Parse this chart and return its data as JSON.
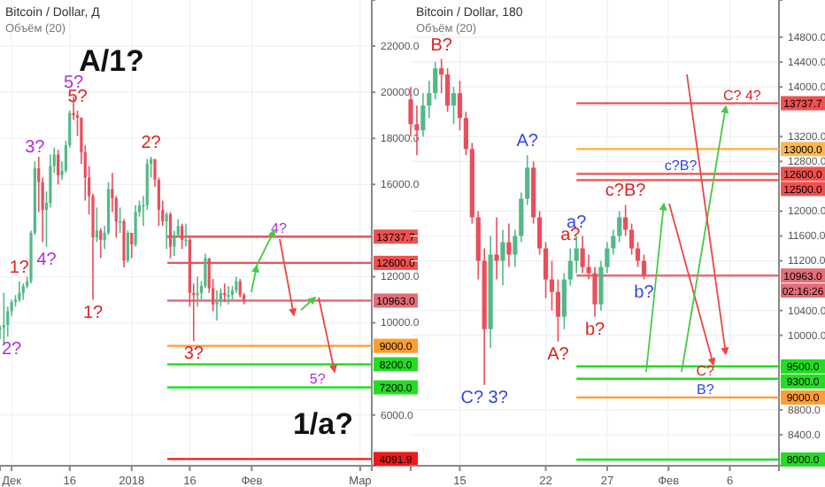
{
  "chart_data": [
    {
      "type": "candlestick",
      "title": "Bitcoin / Dollar, Д",
      "subtitle": "Объём (20)",
      "x": [
        "2017-11-28",
        "2017-11-29",
        "2017-11-30",
        "2017-12-01",
        "2017-12-02",
        "2017-12-03",
        "2017-12-04",
        "2017-12-05",
        "2017-12-06",
        "2017-12-07",
        "2017-12-08",
        "2017-12-09",
        "2017-12-10",
        "2017-12-11",
        "2017-12-12",
        "2017-12-13",
        "2017-12-14",
        "2017-12-15",
        "2017-12-16",
        "2017-12-17",
        "2017-12-18",
        "2017-12-19",
        "2017-12-20",
        "2017-12-21",
        "2017-12-22",
        "2017-12-23",
        "2017-12-24",
        "2017-12-25",
        "2017-12-26",
        "2017-12-27",
        "2017-12-28",
        "2017-12-29",
        "2017-12-30",
        "2017-12-31",
        "2018-01-01",
        "2018-01-02",
        "2018-01-03",
        "2018-01-04",
        "2018-01-05",
        "2018-01-06",
        "2018-01-07",
        "2018-01-08",
        "2018-01-09",
        "2018-01-10",
        "2018-01-11",
        "2018-01-12",
        "2018-01-13",
        "2018-01-14",
        "2018-01-15",
        "2018-01-16",
        "2018-01-17",
        "2018-01-18",
        "2018-01-19",
        "2018-01-20",
        "2018-01-21",
        "2018-01-22",
        "2018-01-23",
        "2018-01-24",
        "2018-01-25",
        "2018-01-26",
        "2018-01-27",
        "2018-01-28",
        "2018-01-29",
        "2018-01-30"
      ],
      "ohlc": [
        [
          9700,
          9900,
          9300,
          9800
        ],
        [
          9800,
          11300,
          9000,
          9900
        ],
        [
          9900,
          10700,
          9400,
          10500
        ],
        [
          10500,
          11000,
          10300,
          10900
        ],
        [
          10900,
          11200,
          10700,
          11000
        ],
        [
          11000,
          11800,
          10900,
          11300
        ],
        [
          11300,
          11700,
          11000,
          11600
        ],
        [
          11600,
          12000,
          11500,
          11800
        ],
        [
          11800,
          14000,
          11700,
          13900
        ],
        [
          13900,
          17000,
          13800,
          16700
        ],
        [
          16700,
          17200,
          14800,
          16100
        ],
        [
          16100,
          16300,
          13500,
          14900
        ],
        [
          14900,
          15700,
          13300,
          15200
        ],
        [
          15200,
          17300,
          15000,
          16800
        ],
        [
          16800,
          17600,
          16500,
          17300
        ],
        [
          17300,
          17500,
          16000,
          16400
        ],
        [
          16400,
          17000,
          16200,
          16600
        ],
        [
          16600,
          17900,
          16500,
          17700
        ],
        [
          17700,
          19200,
          17600,
          19100
        ],
        [
          19100,
          19800,
          18800,
          19000
        ],
        [
          19000,
          19200,
          18100,
          18900
        ],
        [
          18900,
          18900,
          16900,
          17400
        ],
        [
          17400,
          17700,
          15300,
          16300
        ],
        [
          16300,
          16800,
          14700,
          15500
        ],
        [
          15500,
          15600,
          11000,
          13700
        ],
        [
          13700,
          15000,
          13500,
          14000
        ],
        [
          14000,
          14100,
          12800,
          13600
        ],
        [
          13600,
          14200,
          13200,
          13900
        ],
        [
          13900,
          16100,
          13800,
          15800
        ],
        [
          15800,
          16500,
          14800,
          15400
        ],
        [
          15400,
          15500,
          13700,
          14400
        ],
        [
          14400,
          15000,
          13900,
          14400
        ],
        [
          14400,
          14500,
          12400,
          12700
        ],
        [
          12700,
          14000,
          12600,
          13900
        ],
        [
          13900,
          13900,
          12800,
          13400
        ],
        [
          13400,
          15100,
          13300,
          14800
        ],
        [
          14800,
          15300,
          14600,
          15100
        ],
        [
          15100,
          15500,
          14200,
          15100
        ],
        [
          15100,
          17100,
          14900,
          16900
        ],
        [
          16900,
          17200,
          16300,
          17100
        ],
        [
          17100,
          17100,
          15900,
          16200
        ],
        [
          16200,
          16300,
          14200,
          14900
        ],
        [
          14900,
          15300,
          14200,
          14400
        ],
        [
          14400,
          14800,
          13200,
          14700
        ],
        [
          14700,
          14800,
          12800,
          13300
        ],
        [
          13300,
          14000,
          12900,
          13800
        ],
        [
          13800,
          14500,
          13700,
          14200
        ],
        [
          14200,
          14300,
          13200,
          13600
        ],
        [
          13600,
          14300,
          13300,
          13600
        ],
        [
          13600,
          13700,
          10700,
          11300
        ],
        [
          11300,
          11700,
          9200,
          11200
        ],
        [
          11200,
          12000,
          10700,
          11300
        ],
        [
          11300,
          11800,
          11000,
          11600
        ],
        [
          11600,
          13000,
          11500,
          12800
        ],
        [
          12800,
          12800,
          11300,
          11500
        ],
        [
          11500,
          11900,
          10500,
          10800
        ],
        [
          10800,
          11400,
          10100,
          10900
        ],
        [
          10900,
          11500,
          10700,
          11300
        ],
        [
          11300,
          11700,
          10900,
          11200
        ],
        [
          11200,
          11600,
          10800,
          11200
        ],
        [
          11200,
          11600,
          11000,
          11400
        ],
        [
          11400,
          12000,
          11300,
          11800
        ],
        [
          11800,
          11900,
          11100,
          11200
        ],
        [
          11200,
          11300,
          10800,
          10963
        ]
      ],
      "xlim": [
        "2017-11-28",
        "2018-03-04"
      ],
      "xticks": [
        {
          "value": "2017-12-01",
          "label": "Дек"
        },
        {
          "value": "2017-12-16",
          "label": "16"
        },
        {
          "value": "2018-01-01",
          "label": "2018"
        },
        {
          "value": "2018-01-16",
          "label": "16"
        },
        {
          "value": "2018-02-01",
          "label": "Фев"
        },
        {
          "value": "2018-03-01",
          "label": "Мар"
        }
      ],
      "ylim": [
        3800,
        24000
      ],
      "yticks": [
        {
          "value": 6000,
          "label": "6000.0"
        },
        {
          "value": 10000,
          "label": "10000.0"
        },
        {
          "value": 12000,
          "label": "12000.0"
        },
        {
          "value": 16000,
          "label": "16000.0"
        },
        {
          "value": 18000,
          "label": "18000.0"
        },
        {
          "value": 20000,
          "label": "20000.0"
        },
        {
          "value": 22000,
          "label": "22000.0"
        }
      ],
      "grid": true,
      "ref_lines": [
        {
          "axis": "y",
          "value": 13737.7,
          "label": "13737.7",
          "color": "#f05050"
        },
        {
          "axis": "y",
          "value": 12600,
          "label": "12600.0",
          "color": "#f05050"
        },
        {
          "axis": "y",
          "value": 10963,
          "label": "10963.0",
          "color": "#e36d78"
        },
        {
          "axis": "y",
          "value": 9000,
          "label": "9000.0",
          "color": "#ff9d2e"
        },
        {
          "axis": "y",
          "value": 8200,
          "label": "8200.0",
          "color": "#22dd22"
        },
        {
          "axis": "y",
          "value": 7200,
          "label": "7200.0",
          "color": "#22dd22"
        },
        {
          "axis": "y",
          "value": 4091.9,
          "label": "4091.9",
          "color": "#f01818"
        }
      ],
      "annotations": [
        "A/1?",
        {
          "text": "5?",
          "x": "2017-12-17",
          "y": 19800
        },
        {
          "text": "5?",
          "x": "2017-12-18",
          "y": 19200
        },
        {
          "text": "3?",
          "x": "2017-12-07",
          "y": 17000
        },
        {
          "text": "2?",
          "x": "2018-01-06",
          "y": 17200
        },
        {
          "text": "4?",
          "x": "2017-12-10",
          "y": 13300
        },
        {
          "text": "1?",
          "x": "2017-12-03",
          "y": 11800
        },
        {
          "text": "2?",
          "x": "2017-11-30",
          "y": 9400
        },
        {
          "text": "1?",
          "x": "2017-12-22",
          "y": 11000
        },
        {
          "text": "4?",
          "x": "2018-02-08",
          "y": 13737.7
        },
        {
          "text": "3?",
          "x": "2018-01-17",
          "y": 9200
        },
        {
          "text": "5?",
          "x": "2018-02-18",
          "y": 7200
        },
        "1/a?"
      ]
    },
    {
      "type": "candlestick",
      "title": "Bitcoin / Dollar, 180",
      "subtitle": "Объём (20)",
      "x": [
        "2018-01-11T00:00",
        "2018-01-11T12:00",
        "2018-01-12T00:00",
        "2018-01-12T12:00",
        "2018-01-13T00:00",
        "2018-01-13T12:00",
        "2018-01-14T00:00",
        "2018-01-14T12:00",
        "2018-01-15T00:00",
        "2018-01-15T12:00",
        "2018-01-16T00:00",
        "2018-01-16T12:00",
        "2018-01-17T00:00",
        "2018-01-17T12:00",
        "2018-01-18T00:00",
        "2018-01-18T12:00",
        "2018-01-19T00:00",
        "2018-01-19T12:00",
        "2018-01-20T00:00",
        "2018-01-20T12:00",
        "2018-01-21T00:00",
        "2018-01-21T12:00",
        "2018-01-22T00:00",
        "2018-01-22T12:00",
        "2018-01-23T00:00",
        "2018-01-23T12:00",
        "2018-01-24T00:00",
        "2018-01-24T12:00",
        "2018-01-25T00:00",
        "2018-01-25T12:00",
        "2018-01-26T00:00",
        "2018-01-26T12:00",
        "2018-01-27T00:00",
        "2018-01-27T12:00",
        "2018-01-28T00:00",
        "2018-01-28T12:00",
        "2018-01-29T00:00",
        "2018-01-29T12:00",
        "2018-01-30T00:00"
      ],
      "ohlc": [
        [
          13800,
          14000,
          13200,
          13400
        ],
        [
          13400,
          13700,
          12900,
          13300
        ],
        [
          13300,
          13900,
          13200,
          13700
        ],
        [
          13700,
          14100,
          13500,
          13900
        ],
        [
          13900,
          14400,
          13800,
          14300
        ],
        [
          14300,
          14450,
          13900,
          14200
        ],
        [
          14200,
          14300,
          13600,
          13700
        ],
        [
          13700,
          14000,
          13400,
          13900
        ],
        [
          13900,
          14100,
          13300,
          13500
        ],
        [
          13500,
          13600,
          12900,
          13000
        ],
        [
          13000,
          13100,
          11800,
          11900
        ],
        [
          11900,
          12000,
          10900,
          11200
        ],
        [
          11200,
          11400,
          9200,
          10100
        ],
        [
          10100,
          11600,
          9800,
          11300
        ],
        [
          11300,
          11900,
          10900,
          11200
        ],
        [
          11200,
          11700,
          10800,
          11500
        ],
        [
          11500,
          11800,
          11100,
          11300
        ],
        [
          11300,
          11700,
          11100,
          11600
        ],
        [
          11600,
          12300,
          11500,
          12200
        ],
        [
          12200,
          12900,
          12100,
          12700
        ],
        [
          12700,
          12800,
          11800,
          11900
        ],
        [
          11900,
          12000,
          11300,
          11400
        ],
        [
          11400,
          11500,
          10600,
          10900
        ],
        [
          10900,
          11200,
          10400,
          10700
        ],
        [
          10700,
          10900,
          9900,
          10300
        ],
        [
          10300,
          11000,
          10100,
          10900
        ],
        [
          10900,
          11400,
          10800,
          11200
        ],
        [
          11200,
          11600,
          11000,
          11400
        ],
        [
          11400,
          11600,
          11000,
          11100
        ],
        [
          11100,
          11300,
          10900,
          11000
        ],
        [
          11000,
          11100,
          10300,
          10500
        ],
        [
          10500,
          11200,
          10400,
          11100
        ],
        [
          11100,
          11500,
          11000,
          11400
        ],
        [
          11400,
          11700,
          11300,
          11600
        ],
        [
          11600,
          12000,
          11500,
          11900
        ],
        [
          11900,
          12100,
          11600,
          11700
        ],
        [
          11700,
          11800,
          11300,
          11400
        ],
        [
          11400,
          11500,
          11100,
          11200
        ],
        [
          11200,
          11300,
          10900,
          10963
        ]
      ],
      "xlim": [
        "2018-01-11",
        "2018-02-10"
      ],
      "xticks": [
        {
          "value": "2018-01-15",
          "label": "15"
        },
        {
          "value": "2018-01-22",
          "label": "22"
        },
        {
          "value": "2018-01-27",
          "label": "27"
        },
        {
          "value": "2018-02-01",
          "label": "Фев"
        },
        {
          "value": "2018-02-06",
          "label": "6"
        }
      ],
      "ylim": [
        7900,
        15400
      ],
      "yticks": [
        {
          "value": 8400,
          "label": "8400.0"
        },
        {
          "value": 8800,
          "label": "8800.0"
        },
        {
          "value": 10000,
          "label": "10000.0"
        },
        {
          "value": 10400,
          "label": "10400.0"
        },
        {
          "value": 11200,
          "label": "11200.0"
        },
        {
          "value": 11600,
          "label": "11600.0"
        },
        {
          "value": 12000,
          "label": "12000.0"
        },
        {
          "value": 12800,
          "label": "12800.0"
        },
        {
          "value": 13200,
          "label": "13200.0"
        },
        {
          "value": 14000,
          "label": "14000.0"
        },
        {
          "value": 14400,
          "label": "14400.0"
        },
        {
          "value": 14800,
          "label": "14800.0"
        }
      ],
      "grid": true,
      "ref_lines": [
        {
          "axis": "y",
          "value": 13737.7,
          "label": "13737.7",
          "color": "#f05050"
        },
        {
          "axis": "y",
          "value": 13000,
          "label": "13000.0",
          "color": "#ffb74d"
        },
        {
          "axis": "y",
          "value": 12600,
          "label": "12600.0",
          "color": "#f05050"
        },
        {
          "axis": "y",
          "value": 12500,
          "label": "12500.0",
          "color": "#f05050"
        },
        {
          "axis": "y",
          "value": 10963,
          "label": "10963.0",
          "color": "#e36d78"
        },
        {
          "axis": "y",
          "value": 9500,
          "label": "9500.0",
          "color": "#22dd22"
        },
        {
          "axis": "y",
          "value": 9300,
          "label": "9300.0",
          "color": "#22dd22"
        },
        {
          "axis": "y",
          "value": 9000,
          "label": "9000.0",
          "color": "#ff9d2e"
        },
        {
          "axis": "y",
          "value": 8000,
          "label": "8000.0",
          "color": "#22dd22"
        }
      ],
      "annotations": [
        {
          "text": "B?",
          "x": "2018-01-13T12:00",
          "y": 14450
        },
        {
          "text": "A?",
          "x": "2018-01-20T12:00",
          "y": 12900
        },
        {
          "text": "a?",
          "x": "2018-01-24T00:00",
          "y": 11400
        },
        {
          "text": "a?",
          "x": "2018-01-24T12:00",
          "y": 11600
        },
        {
          "text": "c?B?",
          "x": "2018-01-28T12:00",
          "y": 12100
        },
        {
          "text": "c?B?",
          "x": "2018-02-02T00:00",
          "y": 12600
        },
        {
          "text": "b?",
          "x": "2018-01-26T00:00",
          "y": 10300
        },
        {
          "text": "b?",
          "x": "2018-01-30T00:00",
          "y": 10900
        },
        {
          "text": "A?",
          "x": "2018-01-23T00:00",
          "y": 9900
        },
        {
          "text": "C? 3?",
          "x": "2018-01-17T00:00",
          "y": 9200
        },
        {
          "text": "C?",
          "x": "2018-02-04T00:00",
          "y": 9300
        },
        {
          "text": "B?",
          "x": "2018-02-04T00:00",
          "y": 9000
        },
        {
          "text": "C? 4?",
          "x": "2018-02-07T00:00",
          "y": 13737.7
        },
        "02:16:26"
      ]
    }
  ]
}
